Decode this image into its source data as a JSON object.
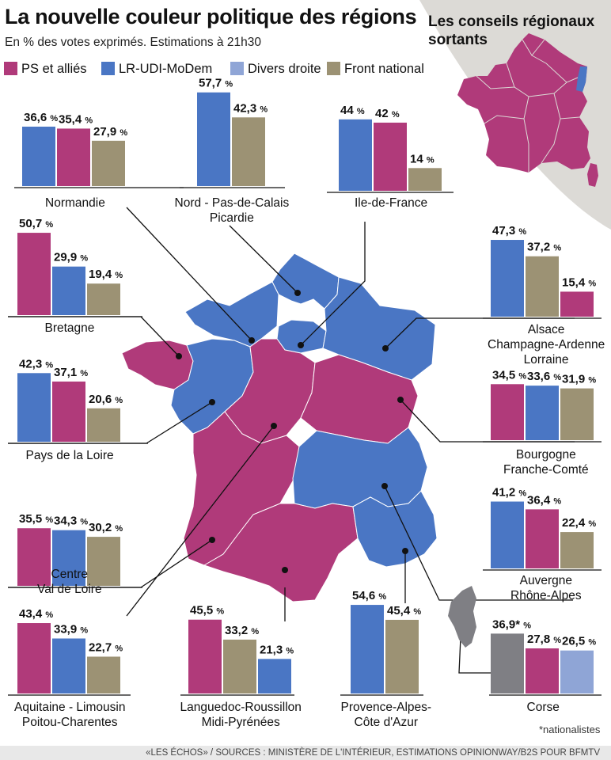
{
  "title": "La nouvelle couleur politique des régions",
  "subtitle": "En % des votes exprimés. Estimations à 21h30",
  "colors": {
    "ps": "#b03a7a",
    "lr": "#4a76c4",
    "dd": "#8fa5d6",
    "fn": "#9c9274",
    "corse_nat": "#7f7f84",
    "inset_bg": "#dcdad6"
  },
  "legend": [
    {
      "key": "ps",
      "label": "PS et alliés"
    },
    {
      "key": "lr",
      "label": "LR-UDI-MoDem"
    },
    {
      "key": "dd",
      "label": "Divers droite"
    },
    {
      "key": "fn",
      "label": "Front national"
    }
  ],
  "inset": {
    "title": "Les conseils régionaux sortants"
  },
  "footnote": "*nationalistes",
  "sources": "«LES ÉCHOS» / SOURCES : MINISTÈRE DE L'INTÉRIEUR, ESTIMATIONS OPINIONWAY/B2S POUR BFMTV",
  "chart_data": [
    {
      "type": "bar",
      "region": "Normandie",
      "unit": "%",
      "bars": [
        {
          "party": "lr",
          "value": 36.6,
          "label": "36,6 %"
        },
        {
          "party": "ps",
          "value": 35.4,
          "label": "35,4 %"
        },
        {
          "party": "fn",
          "value": 27.9,
          "label": "27,9 %"
        }
      ]
    },
    {
      "type": "bar",
      "region": "Nord - Pas-de-Calais\nPicardie",
      "unit": "%",
      "bars": [
        {
          "party": "lr",
          "value": 57.7,
          "label": "57,7 %"
        },
        {
          "party": "fn",
          "value": 42.3,
          "label": "42,3 %"
        }
      ]
    },
    {
      "type": "bar",
      "region": "Ile-de-France",
      "unit": "%",
      "bars": [
        {
          "party": "lr",
          "value": 44,
          "label": "44 %"
        },
        {
          "party": "ps",
          "value": 42,
          "label": "42 %"
        },
        {
          "party": "fn",
          "value": 14,
          "label": "14 %"
        }
      ]
    },
    {
      "type": "bar",
      "region": "Bretagne",
      "unit": "%",
      "bars": [
        {
          "party": "ps",
          "value": 50.7,
          "label": "50,7 %"
        },
        {
          "party": "lr",
          "value": 29.9,
          "label": "29,9 %"
        },
        {
          "party": "fn",
          "value": 19.4,
          "label": "19,4 %"
        }
      ]
    },
    {
      "type": "bar",
      "region": "Alsace\nChampagne-Ardenne\nLorraine",
      "unit": "%",
      "bars": [
        {
          "party": "lr",
          "value": 47.3,
          "label": "47,3 %"
        },
        {
          "party": "fn",
          "value": 37.2,
          "label": "37,2 %"
        },
        {
          "party": "ps",
          "value": 15.4,
          "label": "15,4 %"
        }
      ]
    },
    {
      "type": "bar",
      "region": "Pays de la Loire",
      "unit": "%",
      "bars": [
        {
          "party": "lr",
          "value": 42.3,
          "label": "42,3 %"
        },
        {
          "party": "ps",
          "value": 37.1,
          "label": "37,1 %"
        },
        {
          "party": "fn",
          "value": 20.6,
          "label": "20,6 %"
        }
      ]
    },
    {
      "type": "bar",
      "region": "Bourgogne\nFranche-Comté",
      "unit": "%",
      "bars": [
        {
          "party": "ps",
          "value": 34.5,
          "label": "34,5 %"
        },
        {
          "party": "lr",
          "value": 33.6,
          "label": "33,6 %"
        },
        {
          "party": "fn",
          "value": 31.9,
          "label": "31,9 %"
        }
      ]
    },
    {
      "type": "bar",
      "region": "Centre\nVal de Loire",
      "unit": "%",
      "bars": [
        {
          "party": "ps",
          "value": 35.5,
          "label": "35,5 %"
        },
        {
          "party": "lr",
          "value": 34.3,
          "label": "34,3 %"
        },
        {
          "party": "fn",
          "value": 30.2,
          "label": "30,2 %"
        }
      ]
    },
    {
      "type": "bar",
      "region": "Auvergne\nRhône-Alpes",
      "unit": "%",
      "bars": [
        {
          "party": "lr",
          "value": 41.2,
          "label": "41,2 %"
        },
        {
          "party": "ps",
          "value": 36.4,
          "label": "36,4 %"
        },
        {
          "party": "fn",
          "value": 22.4,
          "label": "22,4 %"
        }
      ]
    },
    {
      "type": "bar",
      "region": "Aquitaine - Limousin\nPoitou-Charentes",
      "unit": "%",
      "bars": [
        {
          "party": "ps",
          "value": 43.4,
          "label": "43,4 %"
        },
        {
          "party": "lr",
          "value": 33.9,
          "label": "33,9 %"
        },
        {
          "party": "fn",
          "value": 22.7,
          "label": "22,7 %"
        }
      ]
    },
    {
      "type": "bar",
      "region": "Languedoc-Roussillon\nMidi-Pyrénées",
      "unit": "%",
      "bars": [
        {
          "party": "ps",
          "value": 45.5,
          "label": "45,5 %"
        },
        {
          "party": "fn",
          "value": 33.2,
          "label": "33,2 %"
        },
        {
          "party": "lr",
          "value": 21.3,
          "label": "21,3 %"
        }
      ]
    },
    {
      "type": "bar",
      "region": "Provence-Alpes-\nCôte d'Azur",
      "unit": "%",
      "bars": [
        {
          "party": "lr",
          "value": 54.6,
          "label": "54,6 %"
        },
        {
          "party": "fn",
          "value": 45.4,
          "label": "45,4 %"
        }
      ]
    },
    {
      "type": "bar",
      "region": "Corse",
      "unit": "%",
      "bars": [
        {
          "party": "corse_nat",
          "value": 36.9,
          "label": "36,9* %"
        },
        {
          "party": "ps",
          "value": 27.8,
          "label": "27,8 %"
        },
        {
          "party": "dd",
          "value": 26.5,
          "label": "26,5 %"
        }
      ]
    }
  ]
}
